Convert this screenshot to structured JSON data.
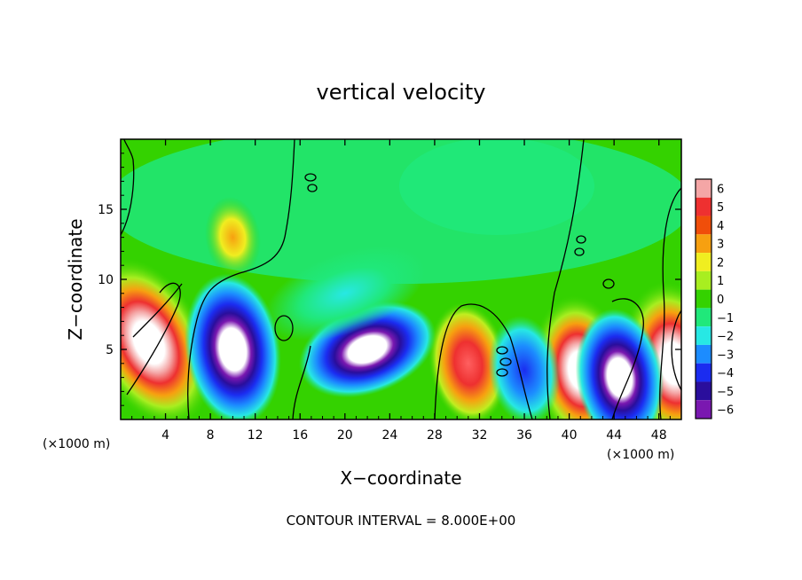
{
  "chart_data": {
    "type": "heatmap",
    "title": "vertical velocity",
    "xlabel": "X−coordinate",
    "ylabel": "Z−coordinate",
    "x_unit_left": "(×1000 m)",
    "x_unit_right": "(×1000 m)",
    "xlim": [
      0,
      50
    ],
    "ylim": [
      0,
      20
    ],
    "x_ticks": [
      4,
      8,
      12,
      16,
      20,
      24,
      28,
      32,
      36,
      40,
      44,
      48
    ],
    "y_ticks": [
      5,
      10,
      15
    ],
    "colorbar": {
      "levels": [
        6,
        5,
        4,
        3,
        2,
        1,
        0,
        -1,
        -2,
        -3,
        -4,
        -5,
        -6
      ],
      "labels": [
        "6",
        "5",
        "4",
        "3",
        "2",
        "1",
        "0",
        "−1",
        "−2",
        "−3",
        "−4",
        "−5",
        "−6"
      ],
      "colors": [
        "#f4a6a6",
        "#ee3030",
        "#f04e0a",
        "#f7a010",
        "#f0ee20",
        "#a8ee20",
        "#34d200",
        "#20e87a",
        "#27e8e4",
        "#1c8cff",
        "#1b2cf0",
        "#2a0e9c",
        "#7a18b0"
      ]
    },
    "features": [
      {
        "kind": "updraft",
        "x": 2.5,
        "z": 5.5,
        "value": 9
      },
      {
        "kind": "updraft",
        "x": 31,
        "z": 4.0,
        "value": 5
      },
      {
        "kind": "updraft",
        "x": 41,
        "z": 3.5,
        "value": 7
      },
      {
        "kind": "updraft",
        "x": 49.3,
        "z": 4.0,
        "value": 8
      },
      {
        "kind": "updraft",
        "x": 10,
        "z": 13,
        "value": 2
      },
      {
        "kind": "downdraft",
        "x": 10,
        "z": 5,
        "value": -7
      },
      {
        "kind": "downdraft",
        "x": 22,
        "z": 5,
        "value": -7
      },
      {
        "kind": "downdraft",
        "x": 36,
        "z": 3.5,
        "value": -4
      },
      {
        "kind": "downdraft",
        "x": 44.5,
        "z": 3.0,
        "value": -6
      },
      {
        "kind": "downdraft",
        "x": 20,
        "z": 9,
        "value": -2
      }
    ],
    "contour_interval_text": "CONTOUR INTERVAL = 8.000E+00"
  }
}
